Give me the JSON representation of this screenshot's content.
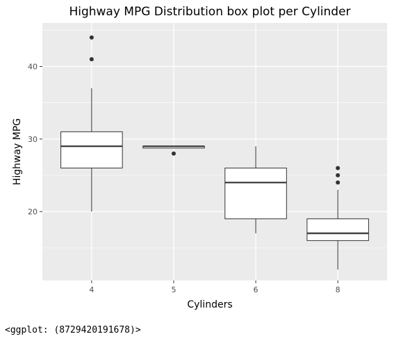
{
  "chart_data": {
    "type": "box",
    "title": "Highway MPG Distribution box plot per Cylinder",
    "xlabel": "Cylinders",
    "ylabel": "Highway MPG",
    "categories": [
      "4",
      "5",
      "6",
      "8"
    ],
    "ylim": [
      10.5,
      46
    ],
    "yticks": [
      20,
      30,
      40
    ],
    "grid": true,
    "boxes": [
      {
        "category": "4",
        "whisker_low": 20,
        "q1": 26,
        "median": 29,
        "q3": 31,
        "whisker_high": 37,
        "outliers": [
          41,
          44
        ]
      },
      {
        "category": "5",
        "whisker_low": 28.75,
        "q1": 28.75,
        "median": 29,
        "q3": 29,
        "whisker_high": 29,
        "outliers": [
          28
        ]
      },
      {
        "category": "6",
        "whisker_low": 17,
        "q1": 19,
        "median": 24,
        "q3": 26,
        "whisker_high": 29,
        "outliers": []
      },
      {
        "category": "8",
        "whisker_low": 12,
        "q1": 16,
        "median": 17,
        "q3": 19,
        "whisker_high": 23,
        "outliers": [
          24,
          25,
          26
        ]
      }
    ]
  },
  "console": {
    "output": "<ggplot: (8729420191678)>"
  }
}
